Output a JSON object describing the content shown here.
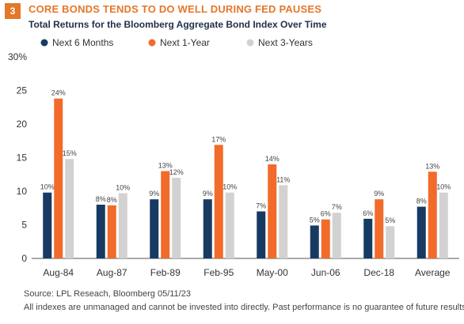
{
  "header": {
    "badge": "3",
    "title": "CORE BONDS TENDS TO DO WELL DURING FED PAUSES",
    "subtitle": "Total Returns for the Bloomberg Aggregate Bond Index Over Time"
  },
  "footer": {
    "source": "Source:  LPL Reseach, Bloomberg  05/11/23",
    "disclaimer": "All indexes are unmanaged and cannot be invested into directly. Past performance is no guarantee of future results."
  },
  "colors": {
    "navy": "#173a63",
    "orange": "#f26b2a",
    "gray": "#d2d2d2",
    "accent": "#e4772b"
  },
  "chart_data": {
    "type": "bar",
    "title": "Total Returns for the Bloomberg Aggregate Bond Index Over Time",
    "categories": [
      "Aug-84",
      "Aug-87",
      "Feb-89",
      "Feb-95",
      "May-00",
      "Jun-06",
      "Dec-18",
      "Average"
    ],
    "series": [
      {
        "name": "Next 6 Months",
        "values": [
          9.8,
          8.0,
          8.8,
          8.8,
          7.0,
          4.9,
          5.9,
          7.7
        ],
        "labels": [
          "10%",
          "8%",
          "9%",
          "9%",
          "7%",
          "5%",
          "6%",
          "8%"
        ],
        "color": "#173a63"
      },
      {
        "name": "Next 1-Year",
        "values": [
          23.8,
          7.9,
          13.0,
          16.9,
          14.0,
          5.8,
          8.8,
          12.9
        ],
        "labels": [
          "24%",
          "8%",
          "13%",
          "17%",
          "14%",
          "6%",
          "9%",
          "13%"
        ],
        "color": "#f26b2a"
      },
      {
        "name": "Next 3-Years",
        "values": [
          14.8,
          9.7,
          12.0,
          9.8,
          10.9,
          6.8,
          4.8,
          9.8
        ],
        "labels": [
          "15%",
          "10%",
          "12%",
          "10%",
          "11%",
          "7%",
          "5%",
          "10%"
        ],
        "color": "#d2d2d2"
      }
    ],
    "yticks": [
      "0",
      "5",
      "10",
      "15",
      "20",
      "25",
      "30%"
    ],
    "ylim": [
      0,
      30
    ],
    "legend_position": "top",
    "grid": false
  }
}
